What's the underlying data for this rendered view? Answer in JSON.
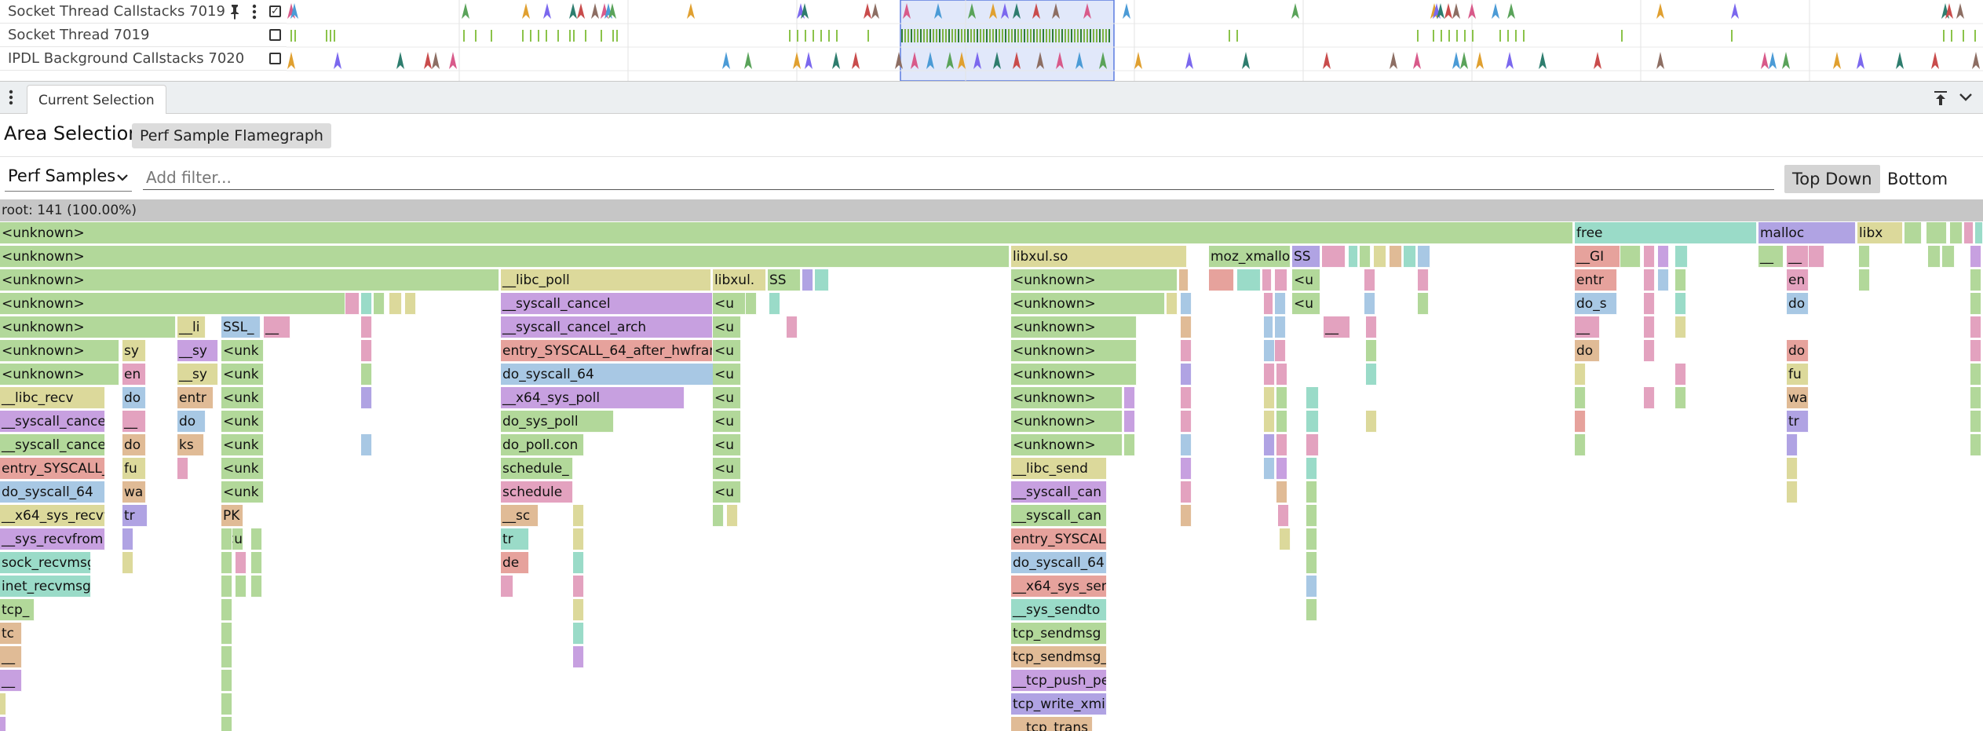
{
  "tracks": [
    {
      "name": "Socket Thread Callstacks 7019",
      "pinned": true,
      "checked": true,
      "pin_icon": "pin-icon",
      "menu_icon": "more-vert-icon"
    },
    {
      "name": "Socket Thread 7019",
      "checked": false
    },
    {
      "name": "IPDL Background Callstacks 7020",
      "checked": false
    }
  ],
  "details": {
    "tab_label": "Current Selection",
    "menu_icon": "more-vert-icon",
    "collapse_icon": "pin-to-top-icon",
    "chevron_icon": "chevron-down-icon"
  },
  "area": {
    "title": "Area Selection",
    "chip": "Perf Sample Flamegraph"
  },
  "toolbar": {
    "select_value": "Perf Samples",
    "filter_placeholder": "Add filter...",
    "top_down": "Top Down",
    "bottom_up": "Bottom Up",
    "active_mode": "Top Down"
  },
  "root": {
    "label": "root: 141 (100.00%)"
  },
  "flame_rows": [
    [
      [
        "<unknown>"
      ],
      [
        "free"
      ],
      [
        "malloc"
      ],
      [
        "libx"
      ]
    ],
    [
      [
        "<unknown>"
      ],
      [
        "libxul.so"
      ],
      [
        "moz_xmalloc"
      ],
      [
        "SS"
      ],
      [
        "__GI"
      ],
      [
        "__"
      ],
      [
        "__"
      ],
      [
        "__"
      ]
    ],
    [
      [
        "<unknown>"
      ],
      [
        "__libc_poll"
      ],
      [
        "libxul."
      ],
      [
        "SS"
      ],
      [
        "<unknown>"
      ],
      [
        "<u"
      ],
      [
        "entr"
      ],
      [
        "en"
      ]
    ],
    [
      [
        "<unknown>"
      ],
      [
        "__syscall_cancel"
      ],
      [
        "<u"
      ],
      [
        "<unknown>"
      ],
      [
        "<u"
      ],
      [
        "do_s"
      ],
      [
        "do"
      ]
    ],
    [
      [
        "<unknown>"
      ],
      [
        "__li"
      ],
      [
        "SSL_"
      ],
      [
        "__"
      ],
      [
        "__syscall_cancel_arch"
      ],
      [
        "<u"
      ],
      [
        "<unknown>"
      ],
      [
        "__"
      ],
      [
        "__"
      ]
    ],
    [
      [
        "<unknown>"
      ],
      [
        "sy"
      ],
      [
        "__sy"
      ],
      [
        "<unk"
      ],
      [
        "entry_SYSCALL_64_after_hwframe"
      ],
      [
        "<u"
      ],
      [
        "<unknown>"
      ],
      [
        "do"
      ],
      [
        "do"
      ]
    ],
    [
      [
        "<unknown>"
      ],
      [
        "en"
      ],
      [
        "__sy"
      ],
      [
        "<unk"
      ],
      [
        "do_syscall_64"
      ],
      [
        "<u"
      ],
      [
        "<unknown>"
      ],
      [
        "fu"
      ]
    ],
    [
      [
        "__libc_recv"
      ],
      [
        "do"
      ],
      [
        "entr"
      ],
      [
        "<unk"
      ],
      [
        "__x64_sys_poll"
      ],
      [
        "<u"
      ],
      [
        "<unknown>"
      ],
      [
        "wa"
      ]
    ],
    [
      [
        "__syscall_cance"
      ],
      [
        "__"
      ],
      [
        "do"
      ],
      [
        "<unk"
      ],
      [
        "do_sys_poll"
      ],
      [
        "<u"
      ],
      [
        "<unknown>"
      ],
      [
        "tr"
      ]
    ],
    [
      [
        "__syscall_cance"
      ],
      [
        "do"
      ],
      [
        "ks"
      ],
      [
        "<unk"
      ],
      [
        "do_poll.con"
      ],
      [
        "<u"
      ],
      [
        "<unknown>"
      ]
    ],
    [
      [
        "entry_SYSCALL_6"
      ],
      [
        "fu"
      ],
      [
        "<unk"
      ],
      [
        "schedule_"
      ],
      [
        "<u"
      ],
      [
        "__libc_send"
      ]
    ],
    [
      [
        "do_syscall_64"
      ],
      [
        "wa"
      ],
      [
        "<unk"
      ],
      [
        "schedule"
      ],
      [
        "<u"
      ],
      [
        "__syscall_can"
      ]
    ],
    [
      [
        "__x64_sys_recvf"
      ],
      [
        "tr"
      ],
      [
        "PK"
      ],
      [
        "__sc"
      ],
      [
        "__syscall_can"
      ]
    ],
    [
      [
        "__sys_recvfrom"
      ],
      [
        "<u"
      ],
      [
        "tr"
      ],
      [
        "entry_SYSCALL"
      ]
    ],
    [
      [
        "sock_recvmsg"
      ],
      [
        "de"
      ],
      [
        "do_syscall_64"
      ]
    ],
    [
      [
        "inet_recvmsg"
      ],
      [
        "__x64_sys_sen"
      ]
    ],
    [
      [
        "tcp_"
      ],
      [
        "__sys_sendto"
      ]
    ],
    [
      [
        "tc"
      ],
      [
        "tcp_sendmsg"
      ]
    ],
    [
      [
        "__"
      ],
      [
        "tcp_sendmsg_l"
      ]
    ],
    [
      [
        "__"
      ],
      [
        "__tcp_push_pe"
      ]
    ],
    [
      [
        "tcp_write_xmi"
      ]
    ],
    [
      [
        "__tcp_trans"
      ]
    ]
  ]
}
